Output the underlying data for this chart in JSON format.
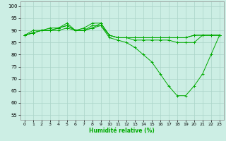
{
  "xlabel": "Humidité relative (%)",
  "bg_color": "#cceee4",
  "grid_color": "#aad4c8",
  "line_color": "#00aa00",
  "xlim": [
    -0.5,
    23.5
  ],
  "ylim": [
    53,
    102
  ],
  "yticks": [
    55,
    60,
    65,
    70,
    75,
    80,
    85,
    90,
    95,
    100
  ],
  "xticks": [
    0,
    1,
    2,
    3,
    4,
    5,
    6,
    7,
    8,
    9,
    10,
    11,
    12,
    13,
    14,
    15,
    16,
    17,
    18,
    19,
    20,
    21,
    22,
    23
  ],
  "lines": [
    [
      88,
      90,
      90,
      91,
      91,
      93,
      90,
      90,
      91,
      93,
      88,
      87,
      87,
      87,
      87,
      87,
      87,
      87,
      87,
      87,
      88,
      88,
      88,
      88
    ],
    [
      88,
      89,
      90,
      90,
      90,
      91,
      90,
      91,
      93,
      93,
      88,
      87,
      87,
      87,
      87,
      87,
      87,
      87,
      87,
      87,
      88,
      88,
      88,
      88
    ],
    [
      88,
      89,
      90,
      90,
      91,
      92,
      90,
      90,
      92,
      92,
      88,
      87,
      87,
      86,
      86,
      86,
      86,
      86,
      85,
      85,
      85,
      88,
      88,
      88
    ],
    [
      88,
      89,
      90,
      90,
      91,
      92,
      90,
      90,
      91,
      92,
      87,
      86,
      85,
      83,
      80,
      77,
      72,
      67,
      63,
      63,
      67,
      72,
      80,
      88
    ]
  ]
}
